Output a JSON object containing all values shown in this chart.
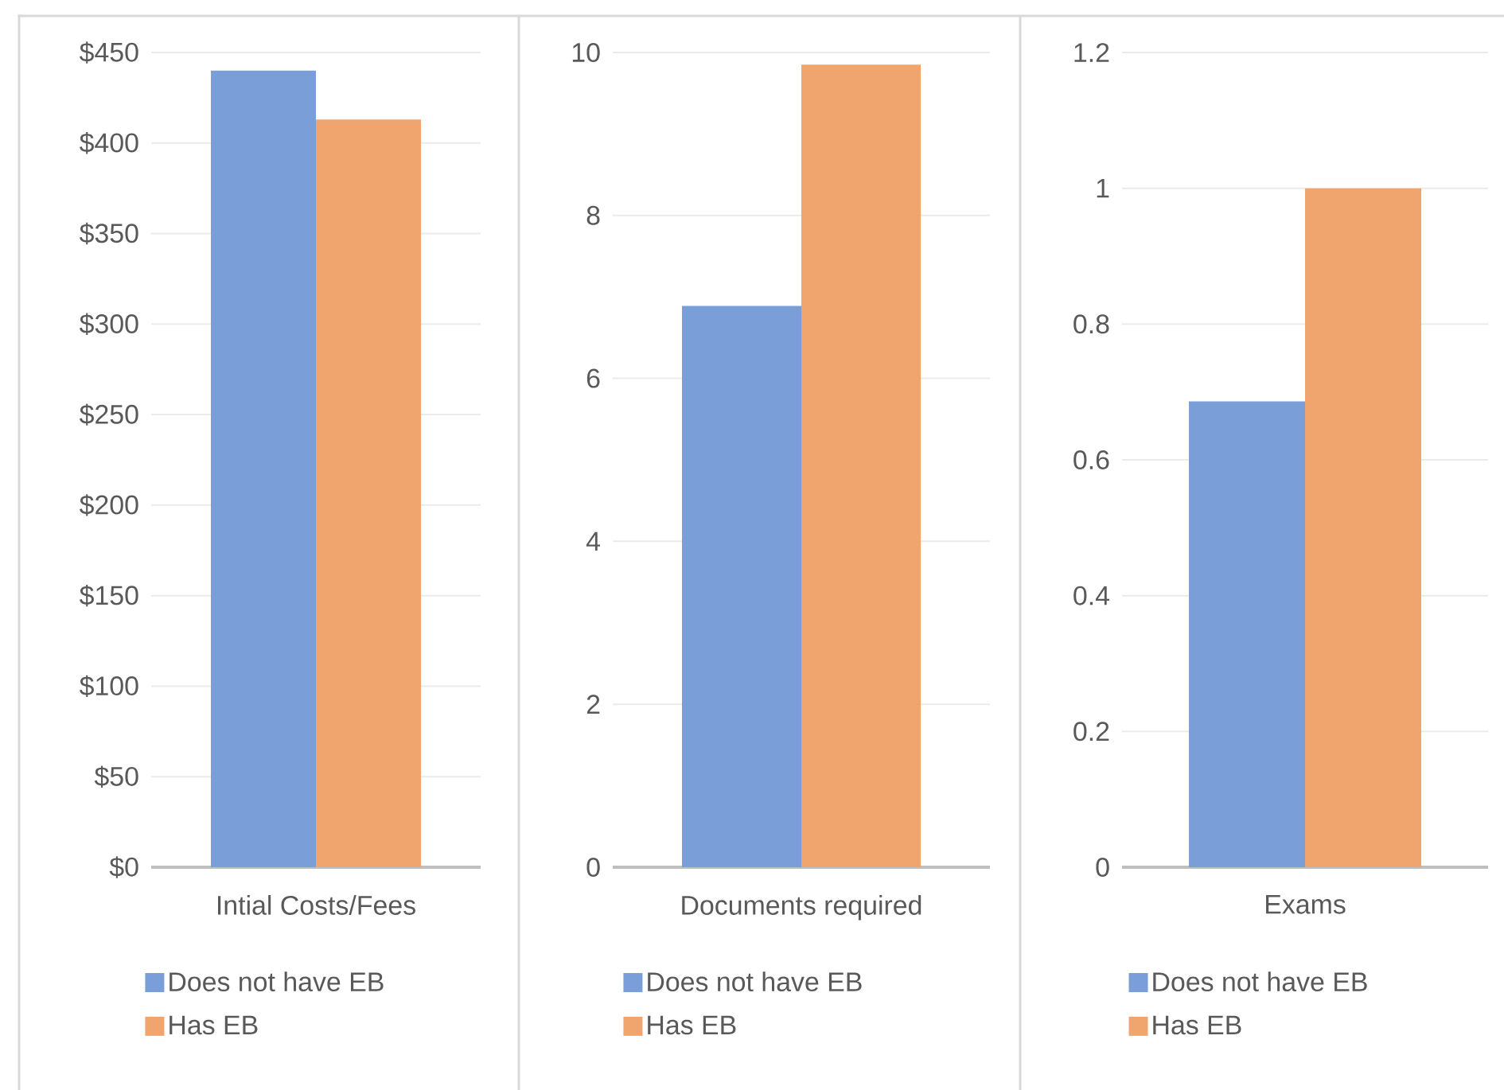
{
  "chart_data": [
    {
      "type": "bar",
      "categories": [
        "Intial Costs/Fees"
      ],
      "series": [
        {
          "name": "Does not have EB",
          "color": "#7a9ed7",
          "values": [
            440
          ]
        },
        {
          "name": "Has EB",
          "color": "#f0a46e",
          "values": [
            413
          ]
        }
      ],
      "ylim": [
        0,
        450
      ],
      "yticks": [
        {
          "value": 0,
          "label": "$0"
        },
        {
          "value": 50,
          "label": "$50"
        },
        {
          "value": 100,
          "label": "$100"
        },
        {
          "value": 150,
          "label": "$150"
        },
        {
          "value": 200,
          "label": "$200"
        },
        {
          "value": 250,
          "label": "$250"
        },
        {
          "value": 300,
          "label": "$300"
        },
        {
          "value": 350,
          "label": "$350"
        },
        {
          "value": 400,
          "label": "$400"
        },
        {
          "value": 450,
          "label": "$450"
        }
      ],
      "grid": "y",
      "legend": "bottom"
    },
    {
      "type": "bar",
      "categories": [
        "Documents  required"
      ],
      "series": [
        {
          "name": "Does not have EB",
          "color": "#7a9ed7",
          "values": [
            6.89
          ]
        },
        {
          "name": "Has EB",
          "color": "#f0a46e",
          "values": [
            9.85
          ]
        }
      ],
      "ylim": [
        0,
        10
      ],
      "yticks": [
        0,
        2,
        4,
        6,
        8,
        10
      ],
      "grid": "y",
      "legend": "bottom"
    },
    {
      "type": "bar",
      "categories": [
        "Exams"
      ],
      "series": [
        {
          "name": "Does not have EB",
          "color": "#7a9ed7",
          "values": [
            0.686
          ]
        },
        {
          "name": "Has EB",
          "color": "#f0a46e",
          "values": [
            1.0
          ]
        }
      ],
      "ylim": [
        0,
        1.2
      ],
      "yticks": [
        0,
        0.2,
        0.4,
        0.6,
        0.8,
        1,
        1.2
      ],
      "grid": "y",
      "legend": "bottom"
    }
  ]
}
